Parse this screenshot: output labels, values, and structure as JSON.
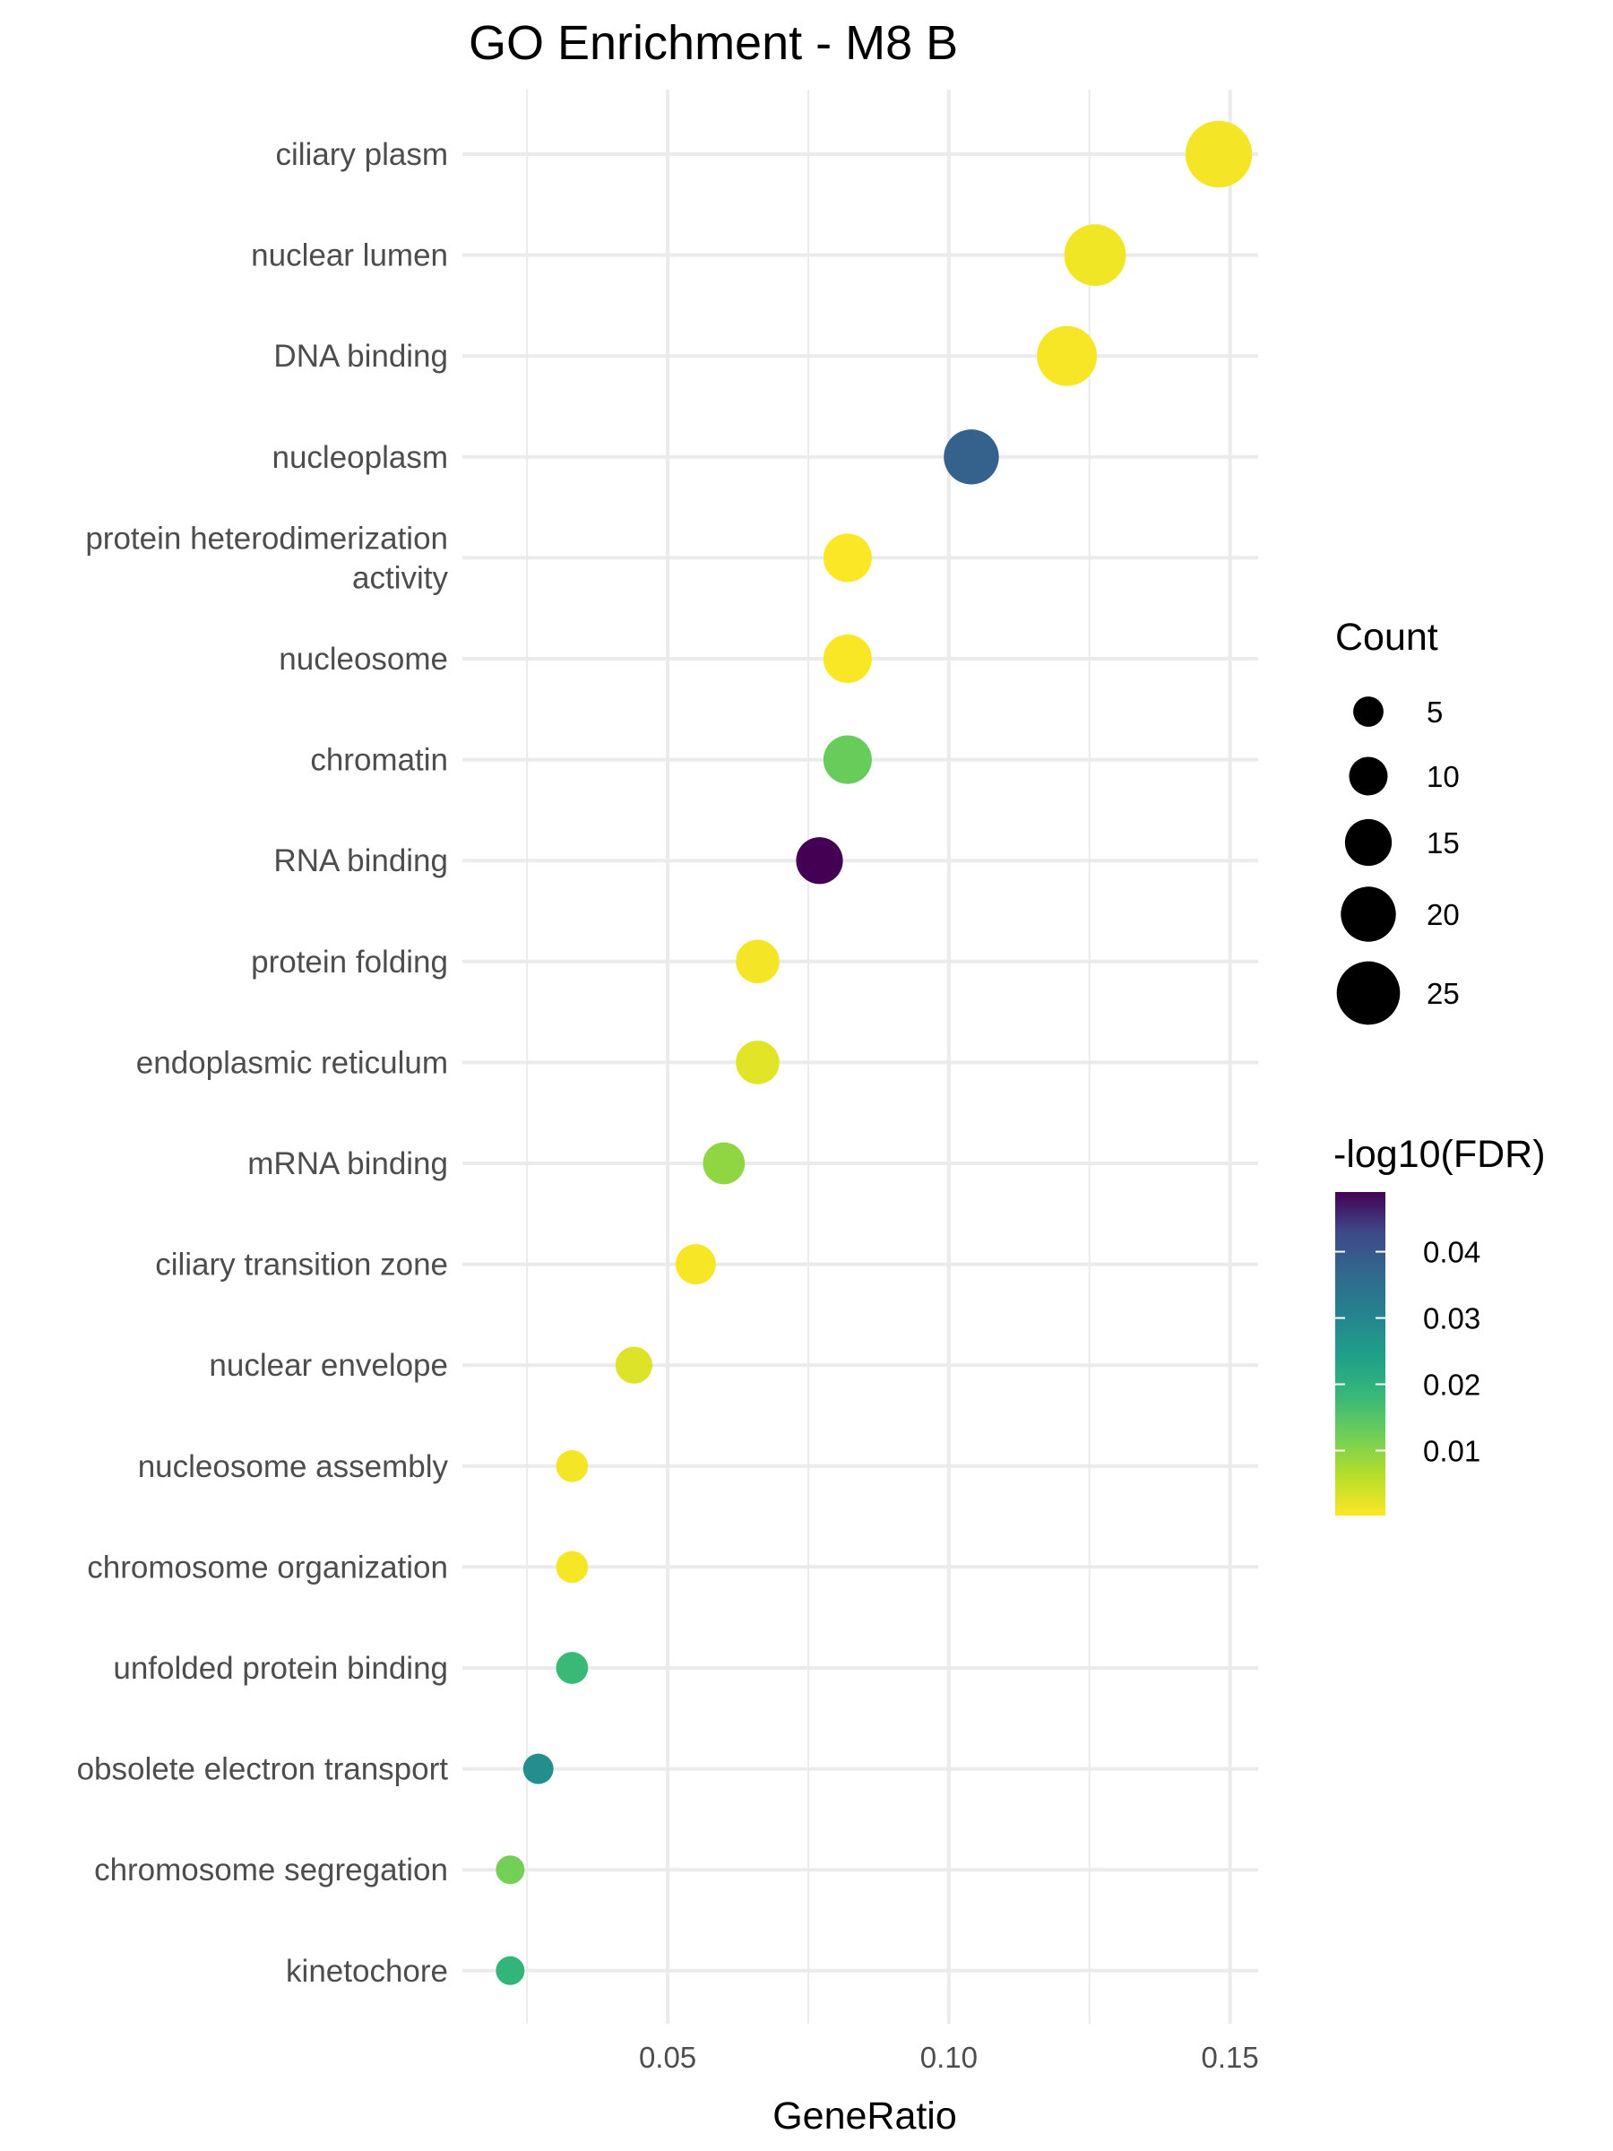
{
  "chart_data": {
    "type": "scatter",
    "title": "GO Enrichment - M8 B",
    "xlabel": "GeneRatio",
    "ylabel": "",
    "xlim": [
      0.0135,
      0.155
    ],
    "x_ticks": [
      {
        "value": 0.05,
        "label": "0.05"
      },
      {
        "value": 0.1,
        "label": "0.10"
      },
      {
        "value": 0.15,
        "label": "0.15"
      }
    ],
    "x_minor_ticks": [
      0.025,
      0.075,
      0.125
    ],
    "grid": true,
    "points": [
      {
        "term": "ciliary plasm",
        "gene_ratio": 0.148,
        "count": 27,
        "fdr_value": 0.001
      },
      {
        "term": "nuclear lumen",
        "gene_ratio": 0.126,
        "count": 24,
        "fdr_value": 0.0012
      },
      {
        "term": "DNA binding",
        "gene_ratio": 0.121,
        "count": 23,
        "fdr_value": 0.0008
      },
      {
        "term": "nucleoplasm",
        "gene_ratio": 0.104,
        "count": 20,
        "fdr_value": 0.038
      },
      {
        "term": "protein heterodimerization\nactivity",
        "gene_ratio": 0.082,
        "count": 16,
        "fdr_value": 0.0004
      },
      {
        "term": "nucleosome",
        "gene_ratio": 0.082,
        "count": 16,
        "fdr_value": 0.0005
      },
      {
        "term": "chromatin",
        "gene_ratio": 0.082,
        "count": 16,
        "fdr_value": 0.013
      },
      {
        "term": "RNA binding",
        "gene_ratio": 0.077,
        "count": 15,
        "fdr_value": 0.049
      },
      {
        "term": "protein folding",
        "gene_ratio": 0.066,
        "count": 13,
        "fdr_value": 0.001
      },
      {
        "term": "endoplasmic reticulum",
        "gene_ratio": 0.066,
        "count": 13,
        "fdr_value": 0.0025
      },
      {
        "term": "mRNA binding",
        "gene_ratio": 0.06,
        "count": 12,
        "fdr_value": 0.0095
      },
      {
        "term": "ciliary transition zone",
        "gene_ratio": 0.055,
        "count": 11,
        "fdr_value": 0.0007
      },
      {
        "term": "nuclear envelope",
        "gene_ratio": 0.044,
        "count": 9,
        "fdr_value": 0.003
      },
      {
        "term": "nucleosome assembly",
        "gene_ratio": 0.033,
        "count": 6,
        "fdr_value": 0.001
      },
      {
        "term": "chromosome organization",
        "gene_ratio": 0.033,
        "count": 6,
        "fdr_value": 0.0008
      },
      {
        "term": "unfolded protein binding",
        "gene_ratio": 0.033,
        "count": 6,
        "fdr_value": 0.018
      },
      {
        "term": "obsolete electron transport",
        "gene_ratio": 0.027,
        "count": 5,
        "fdr_value": 0.028
      },
      {
        "term": "chromosome segregation",
        "gene_ratio": 0.022,
        "count": 4,
        "fdr_value": 0.012
      },
      {
        "term": "kinetochore",
        "gene_ratio": 0.022,
        "count": 4,
        "fdr_value": 0.019
      }
    ],
    "size_legend": {
      "title": "Count",
      "entries": [
        {
          "label": "5",
          "value": 5
        },
        {
          "label": "10",
          "value": 10
        },
        {
          "label": "15",
          "value": 15
        },
        {
          "label": "20",
          "value": 20
        },
        {
          "label": "25",
          "value": 25
        }
      ]
    },
    "color_legend": {
      "title": "-log10(FDR)",
      "range": [
        0.0002,
        0.049
      ],
      "ticks": [
        {
          "value": 0.04,
          "label": "0.04"
        },
        {
          "value": 0.03,
          "label": "0.03"
        },
        {
          "value": 0.02,
          "label": "0.02"
        },
        {
          "value": 0.01,
          "label": "0.01"
        }
      ],
      "colormap": "viridis (reversed)",
      "low_color": "#fde725",
      "high_color": "#440154"
    },
    "legend_position": "right"
  }
}
